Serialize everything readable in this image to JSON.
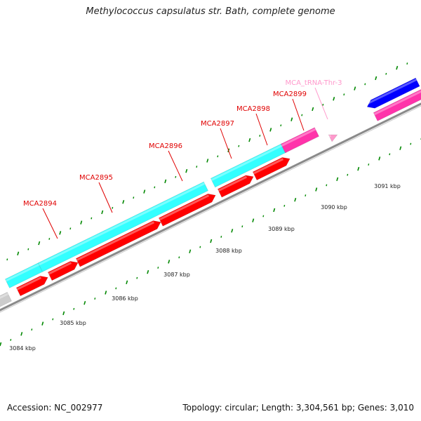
{
  "title": "Methylococcus capsulatus str. Bath, complete genome",
  "footer": {
    "accession": "Accession: NC_002977",
    "info": "Topology: circular; Length: 3,304,561 bp; Genes: 3,010"
  },
  "colors": {
    "backbone": "#8a8a8a",
    "cds": "#ff0000",
    "rrna_like_cyan": "#33ffff",
    "trna": "#ff33aa",
    "trna_label": "#ff99cc",
    "blue_feature": "#0000ff",
    "grey_feature": "#cccccc",
    "tick": "#008800",
    "gene_label": "#e00000"
  },
  "features": [
    {
      "kind": "grey",
      "label": ""
    },
    {
      "kind": "cyan",
      "label": ""
    },
    {
      "kind": "cyan",
      "label": ""
    },
    {
      "kind": "cyan",
      "label": ""
    },
    {
      "kind": "magenta",
      "label": ""
    },
    {
      "kind": "cds",
      "label": "MCA2894"
    },
    {
      "kind": "cds",
      "label": "MCA2895"
    },
    {
      "kind": "cds",
      "label": "MCA2896"
    },
    {
      "kind": "cds",
      "label": "MCA2897"
    },
    {
      "kind": "cds",
      "label": "MCA2898"
    },
    {
      "kind": "cds",
      "label": "MCA2899"
    },
    {
      "kind": "trna",
      "label": "MCA_tRNA-Thr-3"
    },
    {
      "kind": "blue",
      "label": ""
    },
    {
      "kind": "magenta2",
      "label": ""
    }
  ],
  "gene_labels": [
    "MCA2894",
    "MCA2895",
    "MCA2896",
    "MCA2897",
    "MCA2898",
    "MCA2899",
    "MCA_tRNA-Thr-3"
  ],
  "tick_labels": [
    "3084 kbp",
    "3085 kbp",
    "3086 kbp",
    "3087 kbp",
    "3088 kbp",
    "3089 kbp",
    "3090 kbp",
    "3091 kbp"
  ]
}
